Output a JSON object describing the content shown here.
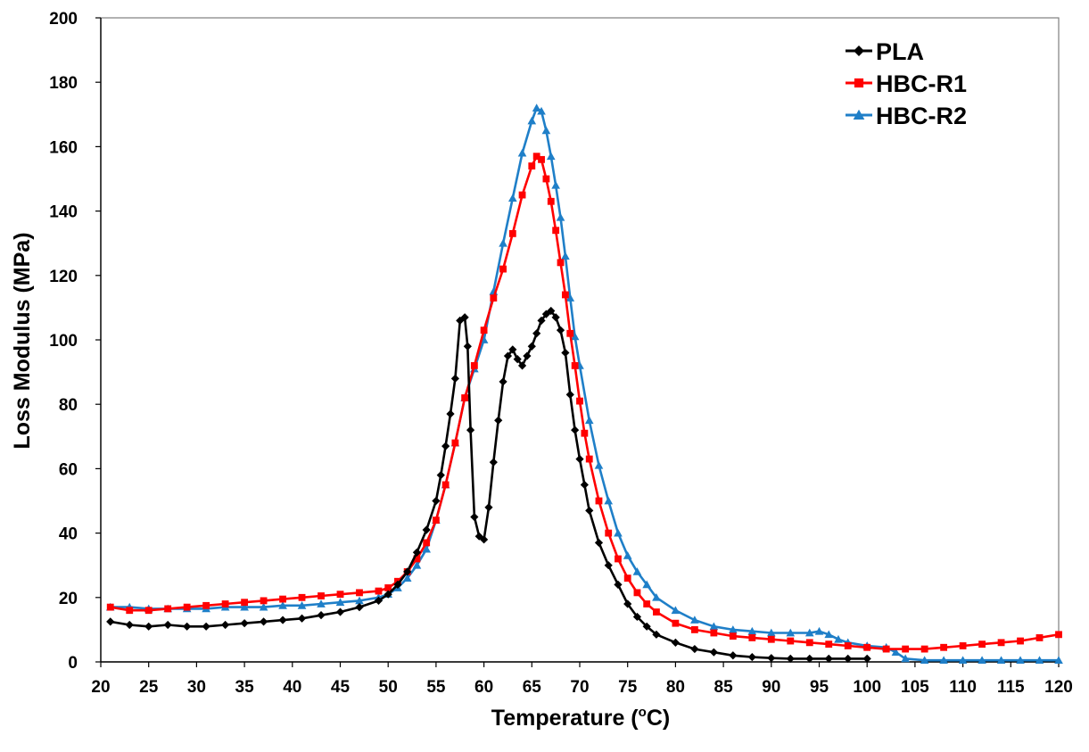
{
  "chart_data": {
    "type": "line",
    "title": "",
    "xlabel": "Temperature (",
    "xlabel_sup": "o",
    "xlabel_unit": "C)",
    "ylabel": "Loss Modulus (MPa)",
    "xlim": [
      20,
      120
    ],
    "ylim": [
      0,
      200
    ],
    "x_ticks": [
      20,
      25,
      30,
      35,
      40,
      45,
      50,
      55,
      60,
      65,
      70,
      75,
      80,
      85,
      90,
      95,
      100,
      105,
      110,
      115,
      120
    ],
    "y_ticks": [
      0,
      20,
      40,
      60,
      80,
      100,
      120,
      140,
      160,
      180,
      200
    ],
    "grid": false,
    "legend_position": "top-right",
    "series": [
      {
        "name": "PLA",
        "color": "#000000",
        "marker": "diamond",
        "x": [
          21,
          23,
          25,
          27,
          29,
          31,
          33,
          35,
          37,
          39,
          41,
          43,
          45,
          47,
          49,
          50,
          51,
          52,
          53,
          54,
          55,
          55.5,
          56,
          56.5,
          57,
          57.5,
          58,
          58.3,
          58.6,
          59,
          59.5,
          60,
          60.5,
          61,
          61.5,
          62,
          62.5,
          63,
          63.5,
          64,
          64.5,
          65,
          65.5,
          66,
          66.5,
          67,
          67.5,
          68,
          68.5,
          69,
          69.5,
          70,
          70.5,
          71,
          72,
          73,
          74,
          75,
          76,
          77,
          78,
          80,
          82,
          84,
          86,
          88,
          90,
          92,
          94,
          96,
          98,
          100
        ],
        "y": [
          12.5,
          11.5,
          11,
          11.5,
          11,
          11,
          11.5,
          12,
          12.5,
          13,
          13.5,
          14.5,
          15.5,
          17,
          19,
          21,
          24,
          28,
          34,
          41,
          50,
          58,
          67,
          77,
          88,
          106,
          107,
          98,
          72,
          45,
          39,
          38,
          48,
          62,
          75,
          87,
          95,
          97,
          94,
          92,
          95,
          98,
          102,
          106,
          108,
          109,
          107,
          103,
          96,
          83,
          72,
          63,
          55,
          47,
          37,
          30,
          24,
          18,
          14,
          11,
          8.5,
          6,
          4,
          3,
          2,
          1.5,
          1.2,
          1,
          1,
          1,
          1,
          1
        ]
      },
      {
        "name": "HBC-R1",
        "color": "#ff0000",
        "marker": "square",
        "x": [
          21,
          23,
          25,
          27,
          29,
          31,
          33,
          35,
          37,
          39,
          41,
          43,
          45,
          47,
          49,
          50,
          51,
          52,
          53,
          54,
          55,
          56,
          57,
          58,
          59,
          60,
          61,
          62,
          63,
          64,
          65,
          65.5,
          66,
          66.5,
          67,
          67.5,
          68,
          68.5,
          69,
          69.5,
          70,
          70.5,
          71,
          72,
          73,
          74,
          75,
          76,
          77,
          78,
          80,
          82,
          84,
          86,
          88,
          90,
          92,
          94,
          96,
          98,
          100,
          102,
          104,
          106,
          108,
          110,
          112,
          114,
          116,
          118,
          120
        ],
        "y": [
          17,
          16,
          16,
          16.5,
          17,
          17.5,
          18,
          18.5,
          19,
          19.5,
          20,
          20.5,
          21,
          21.5,
          22,
          23,
          25,
          28,
          32,
          37,
          44,
          55,
          68,
          82,
          92,
          103,
          113,
          122,
          133,
          145,
          154,
          157,
          156,
          150,
          143,
          134,
          124,
          114,
          102,
          92,
          81,
          71,
          63,
          50,
          40,
          32,
          26,
          21.5,
          18,
          15.5,
          12,
          10,
          9,
          8,
          7.5,
          7,
          6.5,
          6,
          5.5,
          5,
          4.5,
          4,
          4,
          4,
          4.5,
          5,
          5.5,
          6,
          6.5,
          7.5,
          8.5
        ]
      },
      {
        "name": "HBC-R2",
        "color": "#1f7fc8",
        "marker": "triangle",
        "x": [
          21,
          23,
          25,
          27,
          29,
          31,
          33,
          35,
          37,
          39,
          41,
          43,
          45,
          47,
          49,
          50,
          51,
          52,
          53,
          54,
          55,
          56,
          57,
          58,
          59,
          60,
          61,
          62,
          63,
          64,
          65,
          65.5,
          66,
          66.5,
          67,
          67.5,
          68,
          68.5,
          69,
          69.5,
          70,
          71,
          72,
          73,
          74,
          75,
          76,
          77,
          78,
          80,
          82,
          84,
          86,
          88,
          90,
          92,
          94,
          95,
          96,
          97,
          98,
          100,
          102,
          103,
          104,
          106,
          108,
          110,
          112,
          114,
          116,
          118,
          120
        ],
        "y": [
          17,
          17,
          16.5,
          16.5,
          16.5,
          16.5,
          17,
          17,
          17,
          17.5,
          17.5,
          18,
          18.5,
          19,
          20,
          21,
          23,
          26,
          30,
          35,
          44,
          55,
          68,
          82,
          91,
          100,
          115,
          130,
          144,
          158,
          168,
          172,
          171,
          165,
          157,
          148,
          138,
          126,
          113,
          101,
          92,
          75,
          61,
          50,
          40,
          33,
          28,
          24,
          20,
          16,
          13,
          11,
          10,
          9.5,
          9,
          9,
          9,
          9.5,
          8.5,
          7,
          6,
          5,
          4.5,
          3,
          1,
          0.5,
          0.5,
          0.5,
          0.5,
          0.5,
          0.5,
          0.5,
          0.5
        ]
      }
    ]
  }
}
